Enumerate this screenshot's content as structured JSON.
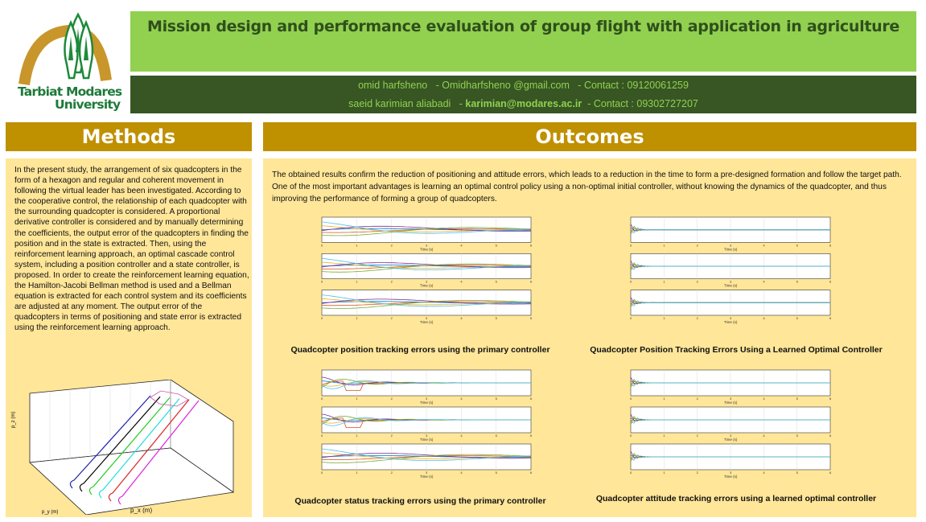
{
  "logo": {
    "text_line1": "Tarbiat Modares",
    "text_line2": "University"
  },
  "header": {
    "title": "Mission design and performance evaluation of group flight with application in agriculture",
    "contacts": [
      {
        "name": "omid harfsheno",
        "email": "Omidharfsheno @gmail.com",
        "contact": "Contact : 09120061259"
      },
      {
        "name": "saeid karimian aliabadi",
        "email": "karimian@modares.ac.ir",
        "contact": "Contact : 09302727207"
      }
    ]
  },
  "methods": {
    "heading": "Methods",
    "text": "In the present study, the arrangement of six quadcopters in the form of a hexagon and regular and coherent movement in following the virtual leader has been investigated. According to the cooperative control, the relationship of each quadcopter with the surrounding quadcopter is considered. A proportional derivative controller is considered and by manually determining the coefficients, the output error of the quadcopters in finding the position and in the state is extracted. Then, using the reinforcement learning approach, an optimal cascade control system, including a position controller and a state controller, is proposed. In order to create the reinforcement learning equation, the Hamilton-Jacobi Bellman method is used and a Bellman equation is extracted for each control system and its coefficients are adjusted at any moment. The output error of the quadcopters in terms of positioning and state error is extracted using the reinforcement learning approach.",
    "plot3d": {
      "zlabel": "p_z (m)",
      "ylabel": "p_y (m)",
      "xlabel": "p_x (m)",
      "series_colors": [
        "#1f1fb0",
        "#000000",
        "#22cc22",
        "#22dddd",
        "#dd2222",
        "#dd22dd"
      ]
    }
  },
  "outcomes": {
    "heading": "Outcomes",
    "text": "The obtained results confirm the reduction of positioning and attitude errors, which leads to a reduction in the time to form a pre-designed formation and follow the target path. One of the most important advantages is learning an optimal control policy using a non-optimal initial controller, without knowing the dynamics of the quadcopter, and thus improving the performance of forming a group of quadcopters.",
    "figures": [
      {
        "caption": "Quadcopter position tracking errors using the primary controller",
        "xlabel": "Time (s)",
        "type": "primary"
      },
      {
        "caption": "Quadcopter Position Tracking Errors Using a Learned Optimal Controller",
        "xlabel": "Time (s)",
        "type": "learned"
      },
      {
        "caption": "Quadcopter status tracking errors using the primary controller",
        "xlabel": "Time (s)",
        "type": "primary2"
      },
      {
        "caption": "Quadcopter attitude tracking errors using a learned optimal controller",
        "xlabel": "Time (s)",
        "type": "learned2"
      }
    ],
    "line_colors": [
      "#0072bd",
      "#d95319",
      "#edb120",
      "#7e2f8e",
      "#77ac30",
      "#4dbeee"
    ]
  },
  "colors": {
    "title_bar": "#92d050",
    "contact_bar": "#375623",
    "section_head": "#bf9000",
    "section_body": "#ffe699"
  }
}
